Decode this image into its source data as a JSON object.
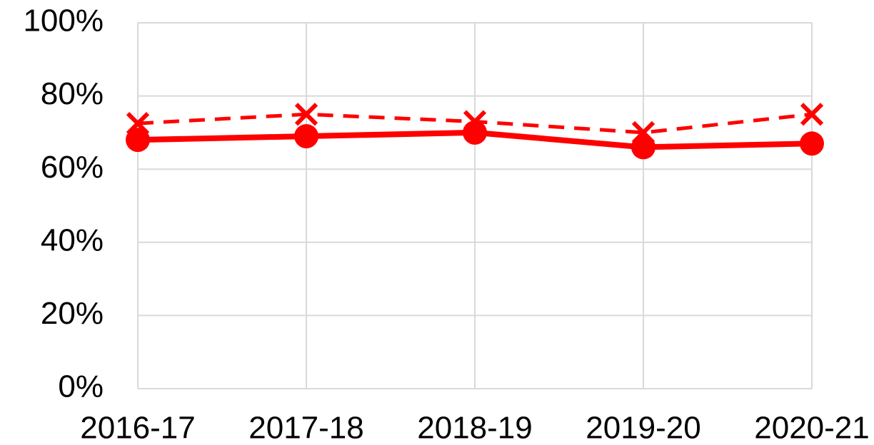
{
  "chart_data": {
    "type": "line",
    "categories": [
      "2016-17",
      "2017-18",
      "2018-19",
      "2019-20",
      "2020-21"
    ],
    "series": [
      {
        "color": "#ff0000",
        "style": "solid",
        "marker": "circle",
        "values": [
          68,
          69,
          70,
          66,
          67
        ]
      },
      {
        "color": "#ff0000",
        "style": "dashed",
        "marker": "x",
        "values": [
          72.5,
          75,
          73,
          70,
          75
        ]
      }
    ],
    "ylim": [
      0,
      100
    ],
    "yticks": [
      {
        "value": 0,
        "label": "0%"
      },
      {
        "value": 20,
        "label": "20%"
      },
      {
        "value": 40,
        "label": "40%"
      },
      {
        "value": 60,
        "label": "60%"
      },
      {
        "value": 80,
        "label": "80%"
      },
      {
        "value": 100,
        "label": "100%"
      }
    ],
    "grid": true
  }
}
